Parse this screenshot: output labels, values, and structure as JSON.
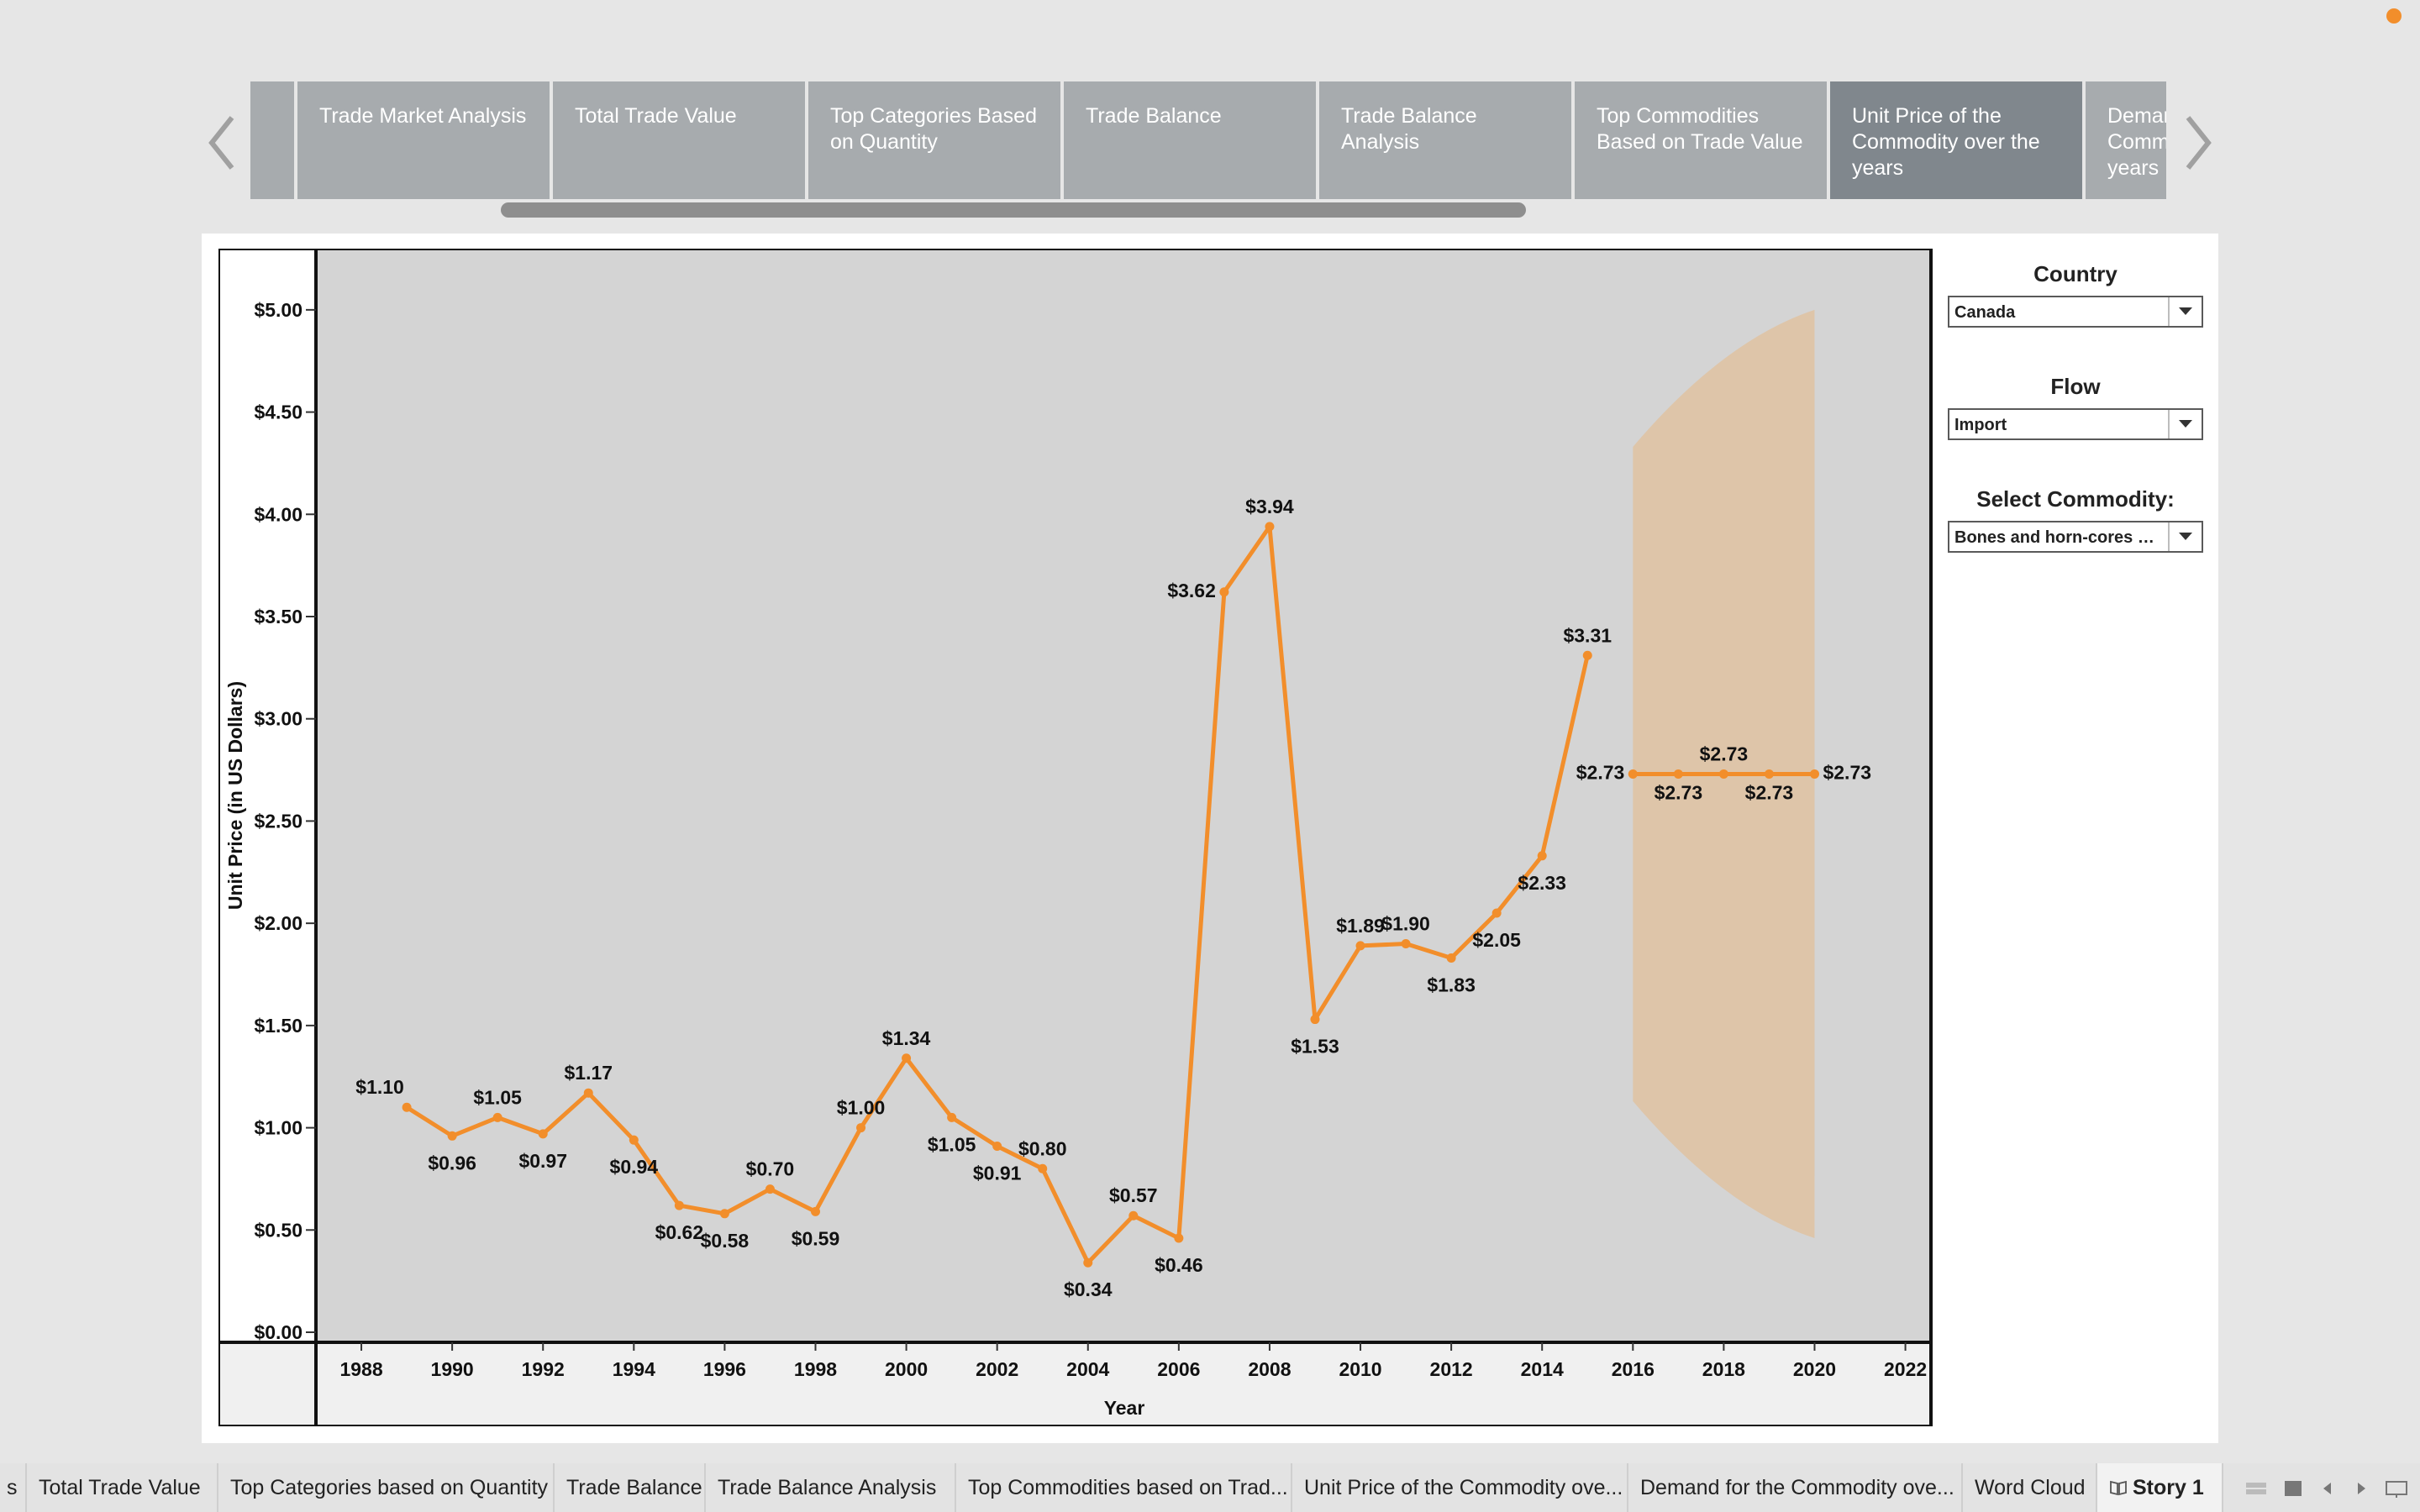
{
  "story_points": [
    {
      "label": ""
    },
    {
      "label": "Trade Market Analysis"
    },
    {
      "label": "Total Trade Value"
    },
    {
      "label": "Top Categories Based on Quantity"
    },
    {
      "label": "Trade Balance"
    },
    {
      "label": "Trade Balance Analysis"
    },
    {
      "label": "Top Commodities Based on Trade Value"
    },
    {
      "label": "Unit Price of the Commodity over the years",
      "active": true
    },
    {
      "label": "Demand for the Commodity over the years"
    }
  ],
  "icons": {
    "prev": "chevron-left-icon",
    "next": "chevron-right-icon",
    "dropdown": "caret-down-icon",
    "story": "book-icon"
  },
  "colors": {
    "line": "#f28e2b",
    "forecast_band": "#dfc3a4",
    "plot_bg": "#d4d4d4",
    "active_story": "#80878d",
    "story": "#a7abae"
  },
  "filters": {
    "country": {
      "title": "Country",
      "value": "Canada"
    },
    "flow": {
      "title": "Flow",
      "value": "Import"
    },
    "commodity": {
      "title": "Select Commodity:",
      "value": "Bones and horn-cores un..."
    }
  },
  "chart_data": {
    "type": "line",
    "xlabel": "Year",
    "ylabel": "Unit Price (in US Dollars)",
    "xlim": [
      1987,
      2022.6
    ],
    "ylim": [
      0,
      5.25
    ],
    "x_ticks": [
      "1988",
      "1990",
      "1992",
      "1994",
      "1996",
      "1998",
      "2000",
      "2002",
      "2004",
      "2006",
      "2008",
      "2010",
      "2012",
      "2014",
      "2016",
      "2018",
      "2020",
      "2022"
    ],
    "y_ticks": [
      "$0.00",
      "$0.50",
      "$1.00",
      "$1.50",
      "$2.00",
      "$2.50",
      "$3.00",
      "$3.50",
      "$4.00",
      "$4.50",
      "$5.00"
    ],
    "grid": false,
    "series": [
      {
        "kind": "actual",
        "x": [
          1989,
          1990,
          1991,
          1992,
          1993,
          1994,
          1995,
          1996,
          1997,
          1998,
          1999,
          2000,
          2001,
          2002,
          2003,
          2004,
          2005,
          2006,
          2007,
          2008,
          2009,
          2010,
          2011,
          2012,
          2013,
          2014,
          2015
        ],
        "y": [
          1.1,
          0.96,
          1.05,
          0.97,
          1.17,
          0.94,
          0.62,
          0.58,
          0.7,
          0.59,
          1.0,
          1.34,
          1.05,
          0.91,
          0.8,
          0.34,
          0.57,
          0.46,
          3.62,
          3.94,
          1.53,
          1.89,
          1.9,
          1.83,
          2.05,
          2.33,
          3.31
        ],
        "labels": [
          "$1.10",
          "$0.96",
          "$1.05",
          "$0.97",
          "$1.17",
          "$0.94",
          "$0.62",
          "$0.58",
          "$0.70",
          "$0.59",
          "$1.00",
          "$1.34",
          "$1.05",
          "$0.91",
          "$0.80",
          "$0.34",
          "$0.57",
          "$0.46",
          "$3.62",
          "$3.94",
          "$1.53",
          "$1.89",
          "$1.90",
          "$1.83",
          "$2.05",
          "$2.33",
          "$3.31"
        ]
      },
      {
        "kind": "forecast",
        "x": [
          2016,
          2017,
          2018,
          2019,
          2020
        ],
        "y": [
          2.73,
          2.73,
          2.73,
          2.73,
          2.73
        ],
        "labels": [
          "$2.73",
          "$2.73",
          "$2.73",
          "$2.73",
          "$2.73"
        ]
      }
    ],
    "forecast_band": {
      "x": [
        2016,
        2017,
        2018,
        2019,
        2020
      ],
      "upper": [
        4.33,
        4.55,
        4.72,
        4.86,
        5.0
      ],
      "lower": [
        1.13,
        0.91,
        0.74,
        0.6,
        0.46
      ]
    }
  },
  "bottom_tabs": [
    {
      "label": "s"
    },
    {
      "label": "Total Trade Value"
    },
    {
      "label": "Top Categories based on Quantity"
    },
    {
      "label": "Trade Balance"
    },
    {
      "label": "Trade Balance Analysis"
    },
    {
      "label": "Top Commodities based on Trad..."
    },
    {
      "label": "Unit Price of the Commodity ove..."
    },
    {
      "label": "Demand for the Commodity ove..."
    },
    {
      "label": "Word Cloud"
    },
    {
      "label": "Story 1",
      "current": true
    }
  ]
}
